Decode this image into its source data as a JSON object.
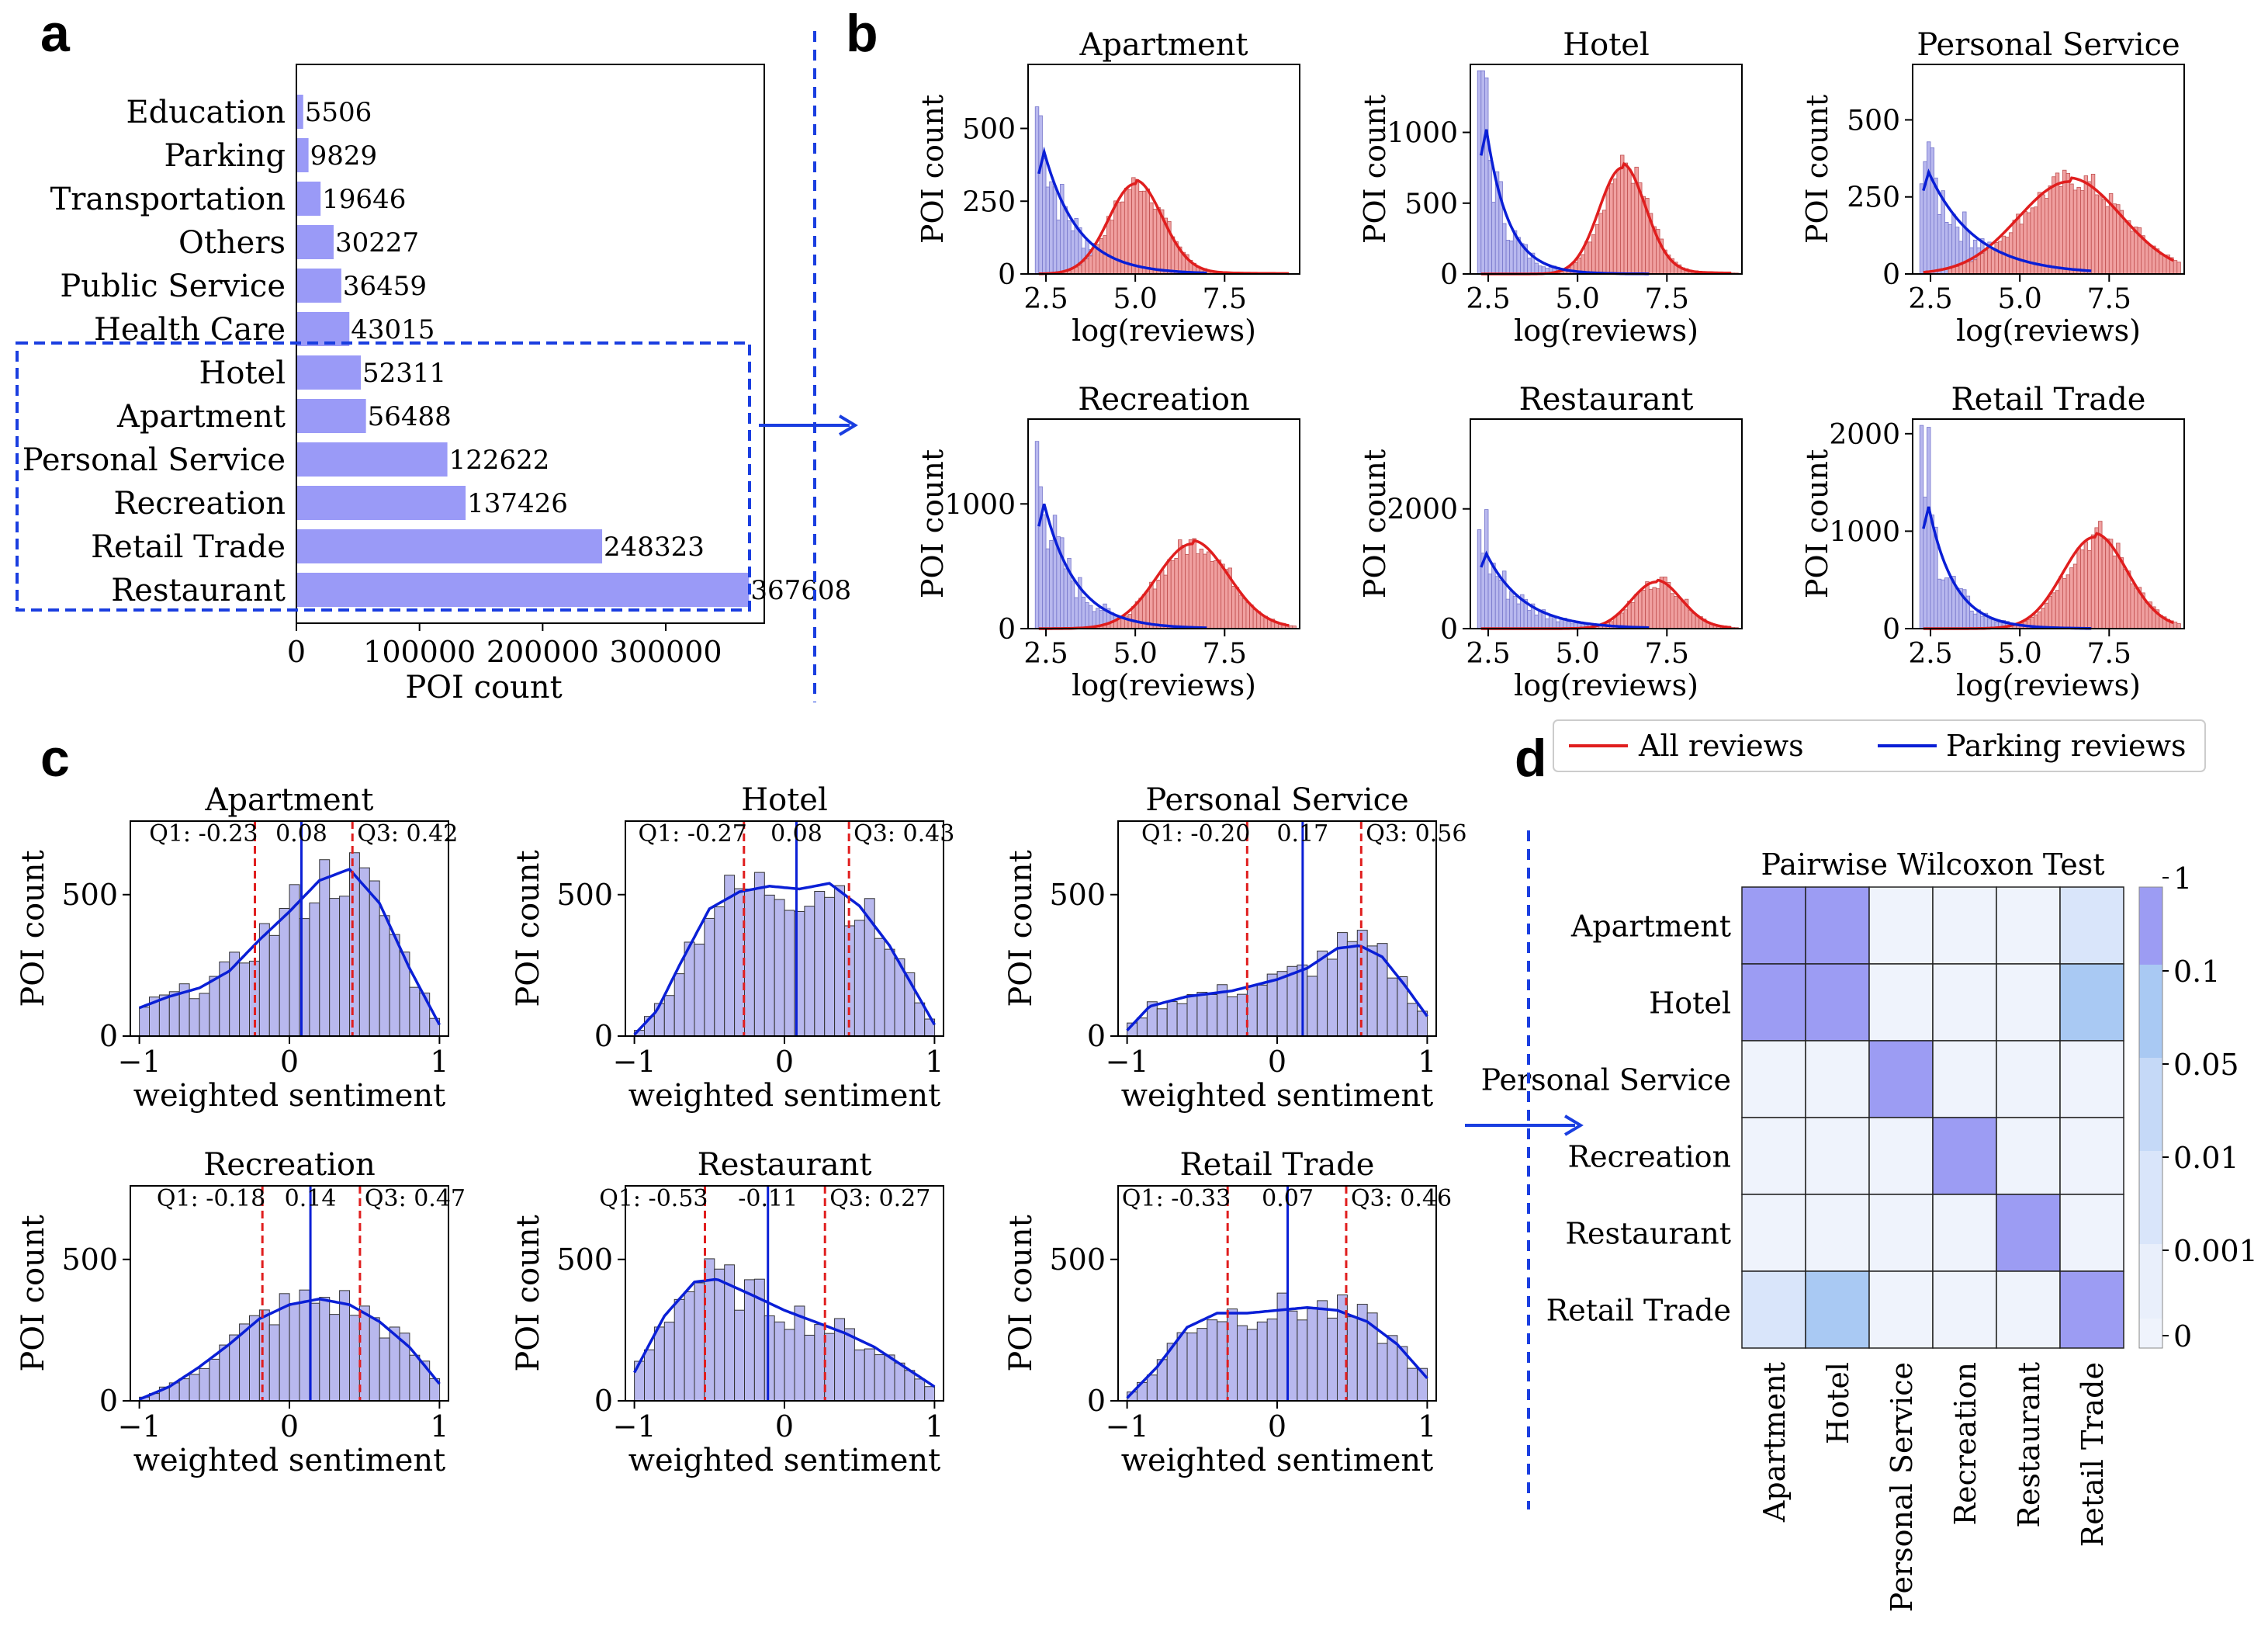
{
  "panels": {
    "a": "a",
    "b": "b",
    "c": "c",
    "d": "d"
  },
  "colors": {
    "bar": "#9a9af7",
    "hist_parking": "#b8b8ee",
    "hist_all": "#f0a0a0",
    "kde_parking": "#0a1fd6",
    "kde_all": "#e01e1e",
    "frame_dashed": "#1a3ee0",
    "q_line": "#e01e1e",
    "median_line": "#0a1fd6"
  },
  "chart_data": [
    {
      "id": "a",
      "type": "bar",
      "orientation": "horizontal",
      "xlabel": "POI count",
      "xticks": [
        0,
        100000,
        200000,
        300000
      ],
      "xlim": [
        0,
        380000
      ],
      "categories": [
        "Education",
        "Parking",
        "Transportation",
        "Others",
        "Public Service",
        "Health Care",
        "Hotel",
        "Apartment",
        "Personal Service",
        "Recreation",
        "Retail Trade",
        "Restaurant"
      ],
      "values": [
        5506,
        9829,
        19646,
        30227,
        36459,
        43015,
        52311,
        56488,
        122622,
        137426,
        248323,
        367608
      ],
      "labels": [
        "5506",
        "9829",
        "19646",
        "30227",
        "36459",
        "43015",
        "52311",
        "56488",
        "122622",
        "137426",
        "248323",
        "367608"
      ]
    },
    {
      "id": "b",
      "type": "histogram",
      "xlabel": "log(reviews)",
      "ylabel": "POI count",
      "xticks": [
        2.5,
        5.0,
        7.5
      ],
      "xticklabels": [
        "2.5",
        "5.0",
        "7.5"
      ],
      "xlim": [
        2.0,
        9.6
      ],
      "legend": {
        "entries": [
          "All reviews",
          "Parking reviews"
        ]
      },
      "subplots": [
        {
          "title": "Apartment",
          "ylim": [
            0,
            720
          ],
          "yticks": [
            0,
            250,
            500
          ],
          "all_peak": 310,
          "all_mu": 5.0,
          "all_sd": 0.75,
          "park_peak": 420,
          "park_rate": 0.95
        },
        {
          "title": "Hotel",
          "ylim": [
            0,
            1480
          ],
          "yticks": [
            0,
            500,
            1000
          ],
          "all_peak": 750,
          "all_mu": 6.25,
          "all_sd": 0.65,
          "park_peak": 1020,
          "park_rate": 0.62
        },
        {
          "title": "Personal Service",
          "ylim": [
            0,
            680
          ],
          "yticks": [
            0,
            250,
            500
          ],
          "all_peak": 300,
          "all_mu": 6.4,
          "all_sd": 1.45,
          "park_peak": 330,
          "park_rate": 1.3
        },
        {
          "title": "Recreation",
          "ylim": [
            0,
            1680
          ],
          "yticks": [
            0,
            1000
          ],
          "all_peak": 680,
          "all_mu": 6.6,
          "all_sd": 1.0,
          "park_peak": 1000,
          "park_rate": 0.9
        },
        {
          "title": "Restaurant",
          "ylim": [
            0,
            3500
          ],
          "yticks": [
            0,
            2000
          ],
          "all_peak": 780,
          "all_mu": 7.2,
          "all_sd": 0.7,
          "park_peak": 1250,
          "park_rate": 1.05
        },
        {
          "title": "Retail Trade",
          "ylim": [
            0,
            2150
          ],
          "yticks": [
            0,
            1000,
            2000
          ],
          "all_peak": 940,
          "all_mu": 7.1,
          "all_sd": 0.9,
          "park_peak": 1250,
          "park_rate": 0.72
        }
      ]
    },
    {
      "id": "c",
      "type": "histogram",
      "xlabel": "weighted sentiment",
      "ylabel": "POI count",
      "xticks": [
        -1,
        0,
        1
      ],
      "xticklabels": [
        "−1",
        "0",
        "1"
      ],
      "xlim": [
        -1.06,
        1.06
      ],
      "ylim": [
        0,
        760
      ],
      "yticks": [
        0,
        500
      ],
      "subplots": [
        {
          "title": "Apartment",
          "q1": -0.23,
          "median": 0.08,
          "q3": 0.42,
          "q1_label": "Q1: -0.23",
          "median_label": "0.08",
          "q3_label": "Q3: 0.42",
          "kde": [
            [
              -1,
              100
            ],
            [
              -0.8,
              140
            ],
            [
              -0.6,
              170
            ],
            [
              -0.4,
              230
            ],
            [
              -0.2,
              340
            ],
            [
              0,
              440
            ],
            [
              0.2,
              550
            ],
            [
              0.4,
              590
            ],
            [
              0.6,
              470
            ],
            [
              0.8,
              240
            ],
            [
              1.0,
              40
            ]
          ]
        },
        {
          "title": "Hotel",
          "q1": -0.27,
          "median": 0.08,
          "q3": 0.43,
          "q1_label": "Q1: -0.27",
          "median_label": "0.08",
          "q3_label": "Q3: 0.43",
          "kde": [
            [
              -1,
              5
            ],
            [
              -0.85,
              90
            ],
            [
              -0.7,
              250
            ],
            [
              -0.5,
              450
            ],
            [
              -0.3,
              510
            ],
            [
              -0.1,
              530
            ],
            [
              0.1,
              520
            ],
            [
              0.3,
              540
            ],
            [
              0.5,
              460
            ],
            [
              0.7,
              320
            ],
            [
              0.85,
              180
            ],
            [
              1.0,
              40
            ]
          ]
        },
        {
          "title": "Personal Service",
          "q1": -0.2,
          "median": 0.17,
          "q3": 0.56,
          "q1_label": "Q1: -0.20",
          "median_label": "0.17",
          "q3_label": "Q3: 0.56",
          "kde": [
            [
              -1,
              20
            ],
            [
              -0.85,
              105
            ],
            [
              -0.6,
              140
            ],
            [
              -0.3,
              160
            ],
            [
              0,
              200
            ],
            [
              0.2,
              240
            ],
            [
              0.4,
              310
            ],
            [
              0.55,
              320
            ],
            [
              0.7,
              280
            ],
            [
              0.85,
              180
            ],
            [
              1.0,
              70
            ]
          ]
        },
        {
          "title": "Recreation",
          "q1": -0.18,
          "median": 0.14,
          "q3": 0.47,
          "q1_label": "Q1: -0.18",
          "median_label": "0.14",
          "q3_label": "Q3: 0.47",
          "kde": [
            [
              -1,
              5
            ],
            [
              -0.8,
              50
            ],
            [
              -0.6,
              120
            ],
            [
              -0.4,
              200
            ],
            [
              -0.2,
              290
            ],
            [
              0,
              340
            ],
            [
              0.2,
              360
            ],
            [
              0.4,
              340
            ],
            [
              0.6,
              280
            ],
            [
              0.8,
              190
            ],
            [
              1.0,
              60
            ]
          ]
        },
        {
          "title": "Restaurant",
          "q1": -0.53,
          "median": -0.11,
          "q3": 0.27,
          "q1_label": "Q1: -0.53",
          "median_label": "-0.11",
          "q3_label": "Q3: 0.27",
          "kde": [
            [
              -1,
              100
            ],
            [
              -0.8,
              300
            ],
            [
              -0.6,
              420
            ],
            [
              -0.45,
              430
            ],
            [
              -0.2,
              370
            ],
            [
              0,
              320
            ],
            [
              0.2,
              280
            ],
            [
              0.4,
              240
            ],
            [
              0.6,
              190
            ],
            [
              0.8,
              120
            ],
            [
              1.0,
              50
            ]
          ]
        },
        {
          "title": "Retail Trade",
          "q1": -0.33,
          "median": 0.07,
          "q3": 0.46,
          "q1_label": "Q1: -0.33",
          "median_label": "0.07",
          "q3_label": "Q3: 0.46",
          "kde": [
            [
              -1,
              10
            ],
            [
              -0.8,
              120
            ],
            [
              -0.6,
              260
            ],
            [
              -0.4,
              310
            ],
            [
              -0.2,
              310
            ],
            [
              0,
              320
            ],
            [
              0.2,
              330
            ],
            [
              0.4,
              320
            ],
            [
              0.6,
              280
            ],
            [
              0.8,
              200
            ],
            [
              1.0,
              80
            ]
          ]
        }
      ]
    },
    {
      "id": "d",
      "type": "heatmap",
      "title": "Pairwise Wilcoxon Test",
      "rows": [
        "Apartment",
        "Hotel",
        "Personal Service",
        "Recreation",
        "Restaurant",
        "Retail Trade"
      ],
      "cols": [
        "Apartment",
        "Hotel",
        "Personal Service",
        "Recreation",
        "Restaurant",
        "Retail Trade"
      ],
      "levels": [
        [
          4,
          4,
          0,
          0,
          0,
          1
        ],
        [
          4,
          4,
          0,
          0,
          0,
          3
        ],
        [
          0,
          0,
          4,
          0,
          0,
          0
        ],
        [
          0,
          0,
          0,
          4,
          0,
          0
        ],
        [
          0,
          0,
          0,
          0,
          4,
          0
        ],
        [
          1,
          3,
          0,
          0,
          0,
          4
        ]
      ],
      "colorbar": {
        "ticks": [
          "1",
          "0.1",
          "0.05",
          "0.01",
          "0.001",
          "0"
        ],
        "colors": [
          "#9c9cf3",
          "#a9c9f3",
          "#c5d9f7",
          "#d9e5fa",
          "#e9effb",
          "#eff3fc"
        ]
      }
    }
  ]
}
